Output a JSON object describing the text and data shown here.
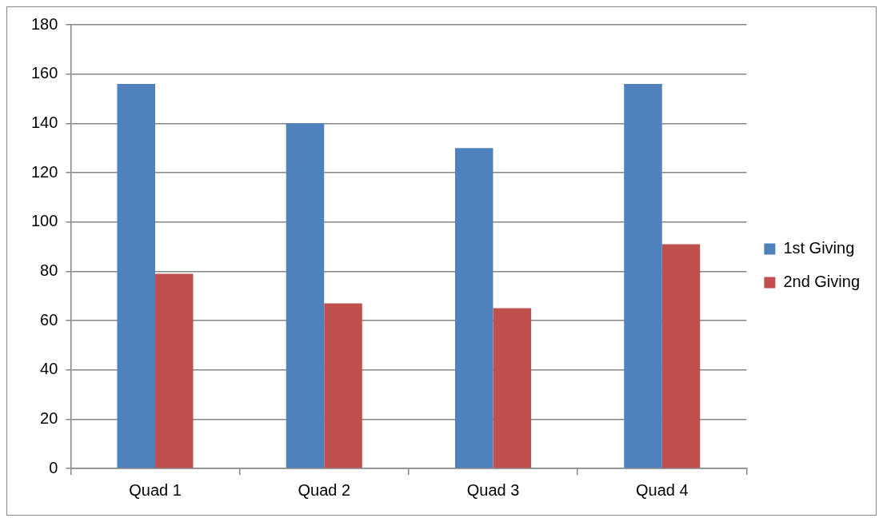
{
  "chart_data": {
    "type": "bar",
    "categories": [
      "Quad 1",
      "Quad 2",
      "Quad 3",
      "Quad 4"
    ],
    "series": [
      {
        "name": "1st Giving",
        "color": "#4f81bd",
        "values": [
          156,
          140,
          130,
          156
        ]
      },
      {
        "name": "2nd Giving",
        "color": "#c0504d",
        "values": [
          79,
          67,
          65,
          91
        ]
      }
    ],
    "ylim": [
      0,
      180
    ],
    "yticks": [
      0,
      20,
      40,
      60,
      80,
      100,
      120,
      140,
      160,
      180
    ],
    "grid": "y",
    "legend": "right"
  }
}
